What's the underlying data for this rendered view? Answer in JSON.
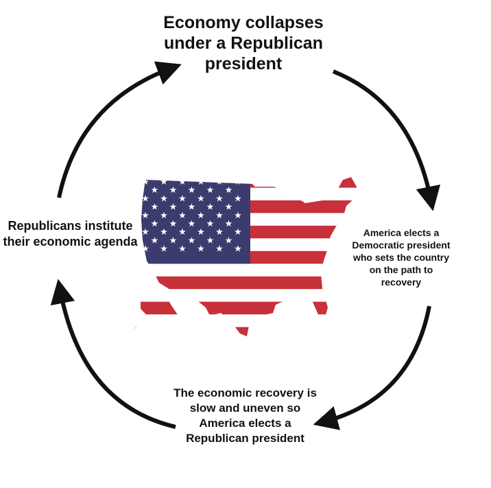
{
  "cycle": {
    "top": "Economy collapses under a Republican president",
    "right": "America elects a Democratic president who sets the country on the path to recovery",
    "bottom": "The economic recovery is slow and uneven so America elects a Republican president",
    "left": "Republicans institute their economic agenda"
  },
  "colors": {
    "red": "#c8303a",
    "blue": "#3c3b6e",
    "white": "#ffffff",
    "arrow": "#111111"
  },
  "icons": {
    "center": "us-flag-map-icon"
  }
}
